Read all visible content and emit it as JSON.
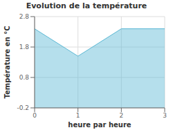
{
  "chart_data": {
    "type": "area",
    "title": "Evolution de la température",
    "x_label": "heure par heure",
    "y_label": "Température en °C",
    "x": [
      0,
      1,
      2,
      3
    ],
    "values": [
      2.4,
      1.5,
      2.4,
      2.4
    ],
    "color": "#5bb8d4",
    "xlim": [
      0,
      3
    ],
    "xticks": [
      0,
      1,
      2,
      3
    ],
    "ylim": [
      -0.2,
      2.8
    ],
    "yticks": [
      -0.2,
      0.8,
      1.8,
      2.8
    ],
    "grid": true
  }
}
